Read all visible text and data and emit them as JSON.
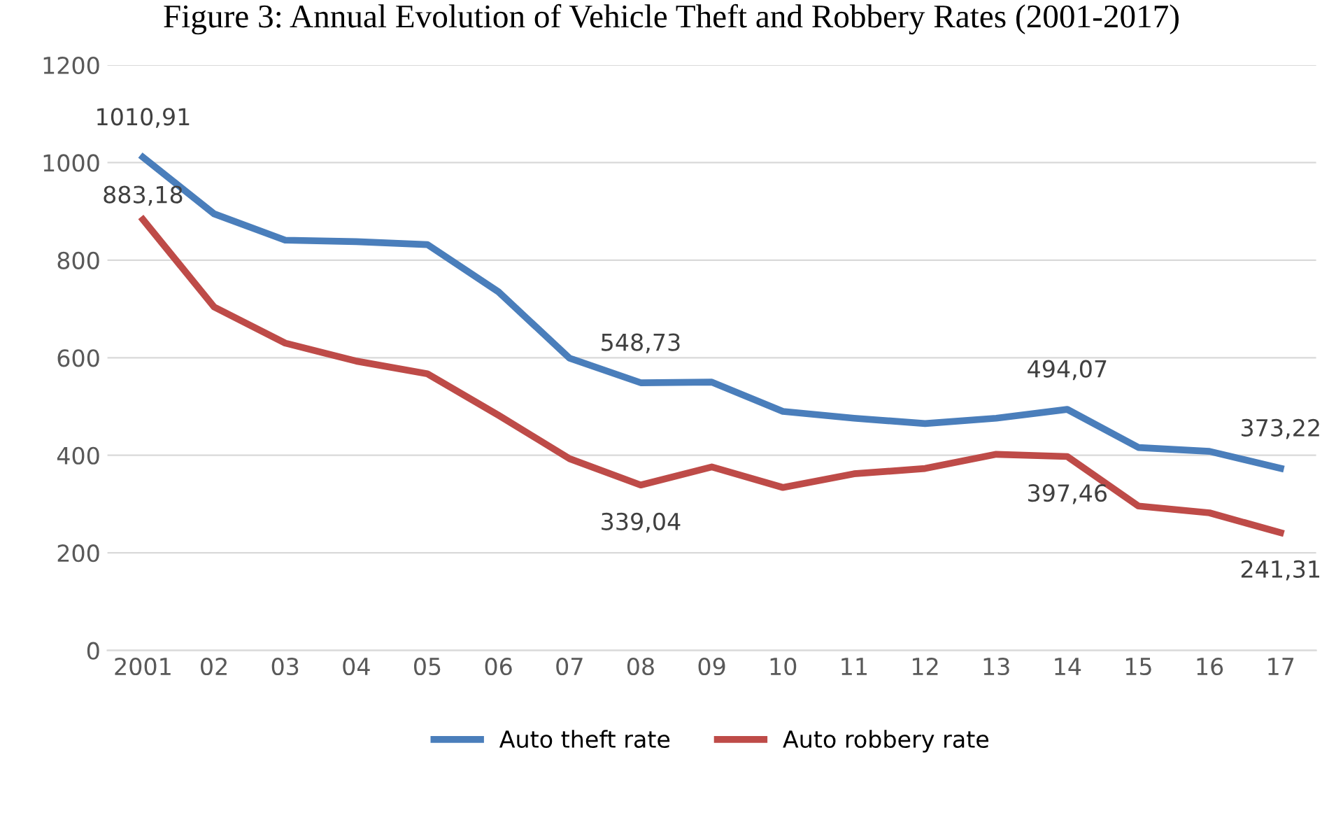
{
  "chart_data": {
    "type": "line",
    "title": "Figure 3: Annual Evolution of Vehicle Theft and Robbery Rates (2001-2017)",
    "categories": [
      "2001",
      "02",
      "03",
      "04",
      "05",
      "06",
      "07",
      "08",
      "09",
      "10",
      "11",
      "12",
      "13",
      "14",
      "15",
      "16",
      "17"
    ],
    "series": [
      {
        "name": "Auto theft rate",
        "color": "#4a7ebb",
        "values": [
          1010.91,
          895,
          841,
          838,
          832,
          735,
          599,
          548.73,
          550,
          490,
          476,
          465,
          476,
          494.07,
          416,
          408,
          373.22
        ],
        "value_labels": [
          "1010,91",
          null,
          null,
          null,
          null,
          null,
          null,
          "548,73",
          null,
          null,
          null,
          null,
          null,
          "494,07",
          null,
          null,
          "373,22"
        ]
      },
      {
        "name": "Auto robbery rate",
        "color": "#be4b48",
        "values": [
          883.18,
          704,
          630,
          593,
          567,
          482,
          393,
          339.04,
          376,
          334,
          362,
          373,
          402,
          397.46,
          296,
          282,
          241.31
        ],
        "value_labels": [
          "883,18",
          null,
          null,
          null,
          null,
          null,
          null,
          "339,04",
          null,
          null,
          null,
          null,
          null,
          "397,46",
          null,
          null,
          "241,31"
        ]
      }
    ],
    "ylim": [
      0,
      1200
    ],
    "yticks": [
      0,
      200,
      400,
      600,
      800,
      1000,
      1200
    ],
    "grid": "y",
    "legend": "bottom",
    "marker": "none",
    "line_style": "solid"
  }
}
